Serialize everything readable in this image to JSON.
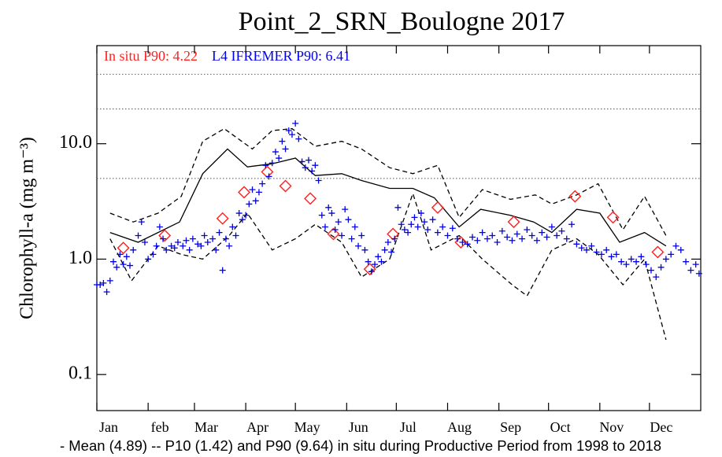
{
  "chart_data": {
    "type": "scatter",
    "title": "Point_2_SRN_Boulogne 2017",
    "annotations": [
      {
        "text": "In situ P90: 4.22",
        "color": "#ff2020"
      },
      {
        "text": "L4 IFREMER P90: 6.41",
        "color": "#0000ee"
      }
    ],
    "ylabel": "Chlorophyll-a (mg m⁻³)",
    "footnote": "- Mean (4.89) -- P10 (1.42) and P90 (9.64) in situ during Productive Period from 1998 to 2018",
    "log_y": true,
    "xlim": [
      0,
      365
    ],
    "xticks": [
      {
        "value": 0,
        "label": "Jan"
      },
      {
        "value": 31,
        "label": "feb"
      },
      {
        "value": 59,
        "label": "Mar"
      },
      {
        "value": 90,
        "label": "Apr"
      },
      {
        "value": 120,
        "label": "May"
      },
      {
        "value": 151,
        "label": "Jun"
      },
      {
        "value": 181,
        "label": "Jul"
      },
      {
        "value": 212,
        "label": "Aug"
      },
      {
        "value": 243,
        "label": "Sep"
      },
      {
        "value": 273,
        "label": "Oct"
      },
      {
        "value": 304,
        "label": "Nov"
      },
      {
        "value": 334,
        "label": "Dec"
      }
    ],
    "ylim": [
      0.0487,
      70.8
    ],
    "yticks": [
      0.1,
      {
        "value": 1,
        "label": "1.0"
      },
      {
        "value": 10,
        "label": "10.0"
      }
    ],
    "reference_lines": [
      5,
      20,
      40
    ],
    "series": [
      {
        "type": "line",
        "style": "solid",
        "color": "#000000",
        "x": [
          8,
          25,
          50,
          64,
          79,
          91,
          106,
          120,
          132,
          148,
          160,
          177,
          191,
          204,
          219,
          232,
          250,
          264,
          275,
          290,
          304,
          316,
          331,
          344
        ],
        "values": [
          1.7,
          1.4,
          2.1,
          5.5,
          9.0,
          6.3,
          6.7,
          7.5,
          5.3,
          5.5,
          4.8,
          4.1,
          4.1,
          3.4,
          1.9,
          2.7,
          2.4,
          2.1,
          1.7,
          2.7,
          2.5,
          1.4,
          1.7,
          1.3
        ]
      },
      {
        "type": "line",
        "style": "dashed",
        "color": "#000000",
        "x": [
          8,
          21,
          37,
          51,
          64,
          80,
          91,
          106,
          120,
          132,
          148,
          160,
          177,
          191,
          202,
          219,
          233,
          251,
          260,
          275,
          290,
          303,
          318,
          331,
          344
        ],
        "values": [
          1.5,
          0.65,
          1.3,
          1.1,
          1.0,
          1.6,
          2.5,
          1.2,
          1.5,
          2.0,
          1.4,
          0.7,
          1.0,
          3.7,
          1.2,
          1.6,
          1.0,
          0.6,
          0.48,
          1.2,
          1.5,
          1.1,
          0.6,
          1.0,
          0.2
        ]
      },
      {
        "type": "line",
        "style": "dashed",
        "color": "#000000",
        "x": [
          8,
          22,
          37,
          51,
          64,
          77,
          94,
          106,
          118,
          132,
          148,
          160,
          177,
          191,
          206,
          219,
          233,
          250,
          265,
          275,
          290,
          303,
          318,
          331,
          344
        ],
        "values": [
          2.5,
          2.1,
          2.5,
          3.5,
          10.5,
          13.5,
          9.0,
          13.0,
          13.5,
          9.5,
          10.5,
          9.0,
          6.2,
          5.5,
          6.5,
          2.3,
          4.0,
          3.3,
          3.6,
          3.0,
          3.6,
          4.5,
          1.8,
          3.5,
          1.6
        ]
      },
      {
        "type": "scatter",
        "marker": "diamond",
        "color": "#ff2020",
        "x": [
          16,
          41,
          76,
          89,
          103,
          114,
          129,
          143,
          165,
          179,
          206,
          220,
          252,
          289,
          312,
          339
        ],
        "values": [
          1.25,
          1.6,
          2.25,
          3.8,
          5.7,
          4.3,
          3.35,
          1.65,
          0.82,
          1.65,
          2.8,
          1.4,
          2.1,
          3.5,
          2.3,
          1.15
        ]
      },
      {
        "type": "scatter",
        "marker": "plus",
        "color": "#0000ee",
        "x": [
          0,
          2,
          4,
          6,
          8,
          10,
          12,
          14,
          16,
          18,
          20,
          22,
          25,
          27,
          29,
          31,
          34,
          36,
          38,
          40,
          42,
          45,
          47,
          49,
          52,
          54,
          56,
          58,
          61,
          63,
          65,
          67,
          70,
          72,
          74,
          76,
          78,
          80,
          82,
          84,
          86,
          88,
          90,
          92,
          94,
          96,
          98,
          100,
          102,
          104,
          106,
          108,
          110,
          112,
          114,
          116,
          118,
          120,
          122,
          124,
          126,
          128,
          130,
          132,
          134,
          136,
          138,
          140,
          142,
          144,
          146,
          148,
          150,
          152,
          154,
          156,
          158,
          160,
          162,
          164,
          166,
          168,
          170,
          172,
          174,
          176,
          178,
          180,
          182,
          184,
          186,
          188,
          190,
          192,
          194,
          196,
          198,
          200,
          203,
          206,
          209,
          212,
          215,
          218,
          221,
          224,
          227,
          230,
          233,
          236,
          239,
          242,
          245,
          248,
          251,
          254,
          257,
          260,
          263,
          266,
          269,
          272,
          275,
          278,
          281,
          284,
          287,
          290,
          293,
          296,
          299,
          302,
          305,
          308,
          311,
          314,
          317,
          320,
          323,
          326,
          329,
          332,
          335,
          338,
          341,
          344,
          347,
          350,
          353,
          356,
          359,
          362,
          364
        ],
        "values": [
          0.6,
          0.6,
          0.62,
          0.52,
          0.65,
          0.95,
          0.85,
          1.1,
          0.9,
          1.05,
          0.88,
          1.2,
          1.6,
          2.1,
          1.4,
          1.0,
          1.1,
          1.3,
          1.9,
          1.5,
          1.2,
          1.3,
          1.25,
          1.4,
          1.3,
          1.45,
          1.2,
          1.5,
          1.35,
          1.3,
          1.6,
          1.4,
          1.5,
          1.2,
          1.7,
          0.8,
          1.5,
          1.3,
          1.9,
          1.6,
          2.5,
          2.2,
          2.4,
          3.0,
          4.0,
          3.2,
          3.8,
          4.5,
          6.5,
          5.2,
          6.8,
          8.5,
          7.5,
          10.5,
          9.0,
          13.0,
          12.0,
          15.0,
          11.0,
          7.0,
          6.2,
          7.2,
          5.8,
          6.5,
          4.8,
          2.4,
          1.9,
          2.8,
          2.5,
          1.8,
          2.1,
          1.6,
          2.7,
          2.2,
          1.5,
          1.9,
          1.3,
          1.6,
          1.2,
          0.95,
          0.78,
          0.9,
          1.05,
          0.95,
          1.2,
          1.4,
          1.15,
          1.5,
          2.8,
          2.0,
          1.8,
          1.7,
          2.0,
          2.3,
          1.9,
          2.5,
          2.1,
          1.8,
          2.2,
          1.7,
          1.9,
          1.6,
          1.85,
          1.5,
          1.4,
          1.35,
          1.55,
          1.45,
          1.7,
          1.5,
          1.6,
          1.4,
          1.75,
          1.55,
          1.45,
          1.65,
          1.5,
          1.8,
          1.6,
          1.45,
          1.7,
          1.55,
          1.9,
          1.6,
          1.75,
          1.5,
          2.0,
          1.35,
          1.25,
          1.2,
          1.3,
          1.15,
          1.1,
          1.2,
          1.05,
          1.1,
          0.95,
          0.9,
          1.0,
          0.95,
          1.05,
          0.9,
          0.8,
          0.7,
          0.85,
          1.0,
          1.1,
          1.3,
          1.2,
          0.95,
          0.8,
          0.9,
          0.75
        ]
      }
    ]
  }
}
